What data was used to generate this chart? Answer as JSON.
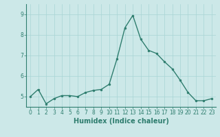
{
  "x": [
    0,
    1,
    2,
    3,
    4,
    5,
    6,
    7,
    8,
    9,
    10,
    11,
    12,
    13,
    14,
    15,
    16,
    17,
    18,
    19,
    20,
    21,
    22,
    23
  ],
  "y": [
    5.0,
    5.35,
    4.65,
    4.9,
    5.05,
    5.05,
    5.0,
    5.2,
    5.3,
    5.35,
    5.6,
    6.85,
    8.35,
    8.95,
    7.8,
    7.25,
    7.1,
    6.7,
    6.35,
    5.8,
    5.2,
    4.8,
    4.8,
    4.9
  ],
  "line_color": "#2e7d6e",
  "marker": "o",
  "markersize": 2.0,
  "linewidth": 1.0,
  "xlabel": "Humidex (Indice chaleur)",
  "xlabel_fontsize": 7,
  "ylim": [
    4.5,
    9.5
  ],
  "xlim": [
    -0.5,
    23.5
  ],
  "yticks": [
    5,
    6,
    7,
    8,
    9
  ],
  "xticks": [
    0,
    1,
    2,
    3,
    4,
    5,
    6,
    7,
    8,
    9,
    10,
    11,
    12,
    13,
    14,
    15,
    16,
    17,
    18,
    19,
    20,
    21,
    22,
    23
  ],
  "grid_color": "#a8d4d4",
  "bg_color": "#cce8e8",
  "tick_fontsize": 5.5,
  "tick_color": "#2e7d6e",
  "spine_color": "#2e7d6e"
}
